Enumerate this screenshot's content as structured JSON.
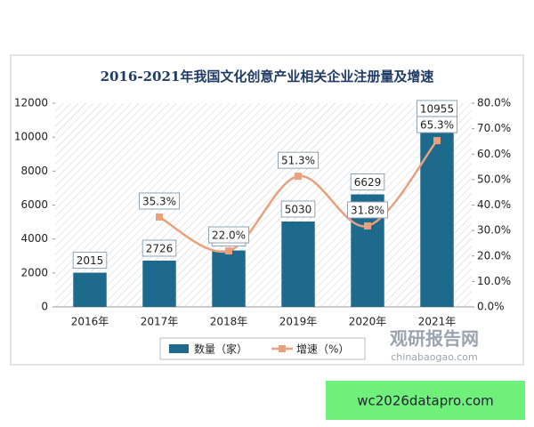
{
  "chart_data": {
    "type": "combo",
    "title": "2016-2021年我国文化创意产业相关企业注册量及增速",
    "categories": [
      "2016年",
      "2017年",
      "2018年",
      "2019年",
      "2020年",
      "2021年"
    ],
    "series": [
      {
        "name": "数量（家）",
        "type": "bar",
        "color": "#1d6a8c",
        "axis": "y",
        "values": [
          2015,
          2726,
          3325,
          5030,
          6629,
          10955
        ]
      },
      {
        "name": "增速（%）",
        "type": "line",
        "color": "#e9a07c",
        "axis": "y2",
        "values": [
          null,
          35.3,
          22.0,
          51.3,
          31.8,
          65.3
        ],
        "value_labels": [
          null,
          "35.3%",
          "22.0%",
          "51.3%",
          "31.8%",
          "65.3%"
        ]
      }
    ],
    "ylim": [
      0,
      12000
    ],
    "yticks": [
      0,
      2000,
      4000,
      6000,
      8000,
      10000,
      12000
    ],
    "y2lim": [
      0,
      80
    ],
    "y2ticks": [
      {
        "value": 0,
        "label": "0.0%"
      },
      {
        "value": 10,
        "label": "10.0%"
      },
      {
        "value": 20,
        "label": "20.0%"
      },
      {
        "value": 30,
        "label": "30.0%"
      },
      {
        "value": 40,
        "label": "40.0%"
      },
      {
        "value": 50,
        "label": "50.0%"
      },
      {
        "value": 60,
        "label": "60.0%"
      },
      {
        "value": 70,
        "label": "70.0%"
      },
      {
        "value": 80,
        "label": "80.0%"
      }
    ],
    "grid": false,
    "legend": "bottom",
    "watermark": {
      "name": "观研报告网",
      "site": "chinabaogao.com"
    }
  },
  "overlay": {
    "text": "wc2026datapro.com"
  }
}
